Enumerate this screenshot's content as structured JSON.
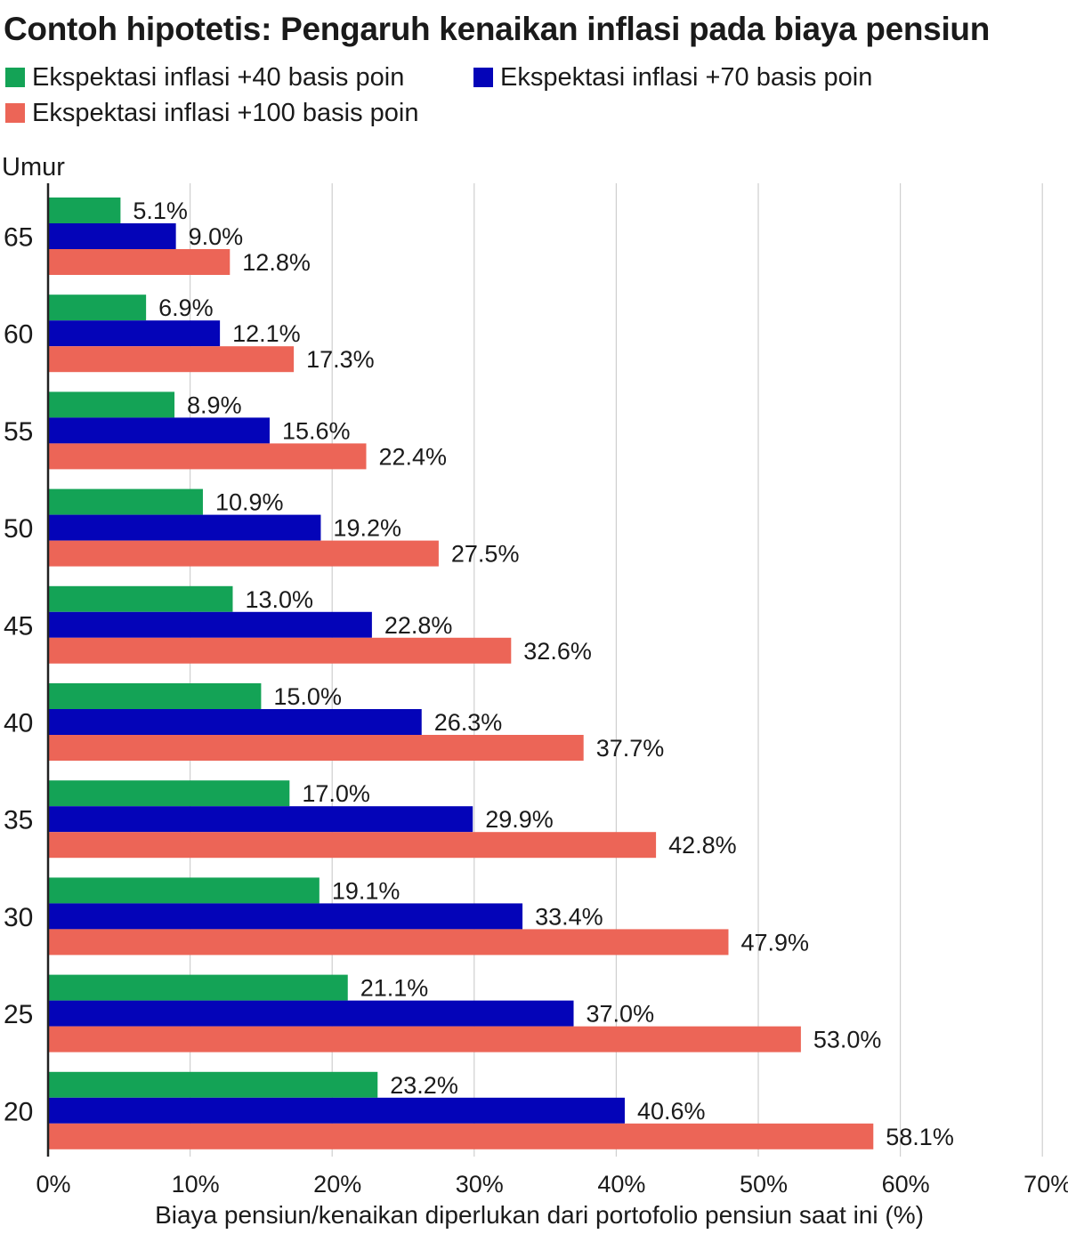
{
  "chart_data": {
    "type": "bar",
    "orientation": "horizontal",
    "title": "Contoh hipotetis: Pengaruh kenaikan inflasi pada biaya pensiun",
    "xlabel": "Biaya pensiun/kenaikan diperlukan dari portofolio pensiun saat ini (%)",
    "ylabel": "Umur",
    "categories": [
      "65",
      "60",
      "55",
      "50",
      "45",
      "40",
      "35",
      "30",
      "25",
      "20"
    ],
    "series": [
      {
        "name": "Ekspektasi inflasi +40 basis poin",
        "color": "#14a356",
        "values": [
          5.1,
          6.9,
          8.9,
          10.9,
          13.0,
          15.0,
          17.0,
          19.1,
          21.1,
          23.2
        ],
        "labels": [
          "5.1%",
          "6.9%",
          "8.9%",
          "10.9%",
          "13.0%",
          "15.0%",
          "17.0%",
          "19.1%",
          "21.1%",
          "23.2%"
        ]
      },
      {
        "name": "Ekspektasi inflasi +70 basis poin",
        "color": "#0404b8",
        "values": [
          9.0,
          12.1,
          15.6,
          19.2,
          22.8,
          26.3,
          29.9,
          33.4,
          37.0,
          40.6
        ],
        "labels": [
          "9.0%",
          "12.1%",
          "15.6%",
          "19.2%",
          "22.8%",
          "26.3%",
          "29.9%",
          "33.4%",
          "37.0%",
          "40.6%"
        ]
      },
      {
        "name": "Ekspektasi inflasi +100 basis poin",
        "color": "#ec6557",
        "values": [
          12.8,
          17.3,
          22.4,
          27.5,
          32.6,
          37.7,
          42.8,
          47.9,
          53.0,
          58.1
        ],
        "labels": [
          "12.8%",
          "17.3%",
          "22.4%",
          "27.5%",
          "32.6%",
          "37.7%",
          "42.8%",
          "47.9%",
          "53.0%",
          "58.1%"
        ]
      }
    ],
    "xlim": [
      0,
      70
    ],
    "xticks": [
      0,
      10,
      20,
      30,
      40,
      50,
      60,
      70
    ],
    "xtick_labels": [
      "0%",
      "10%",
      "20%",
      "30%",
      "40%",
      "50%",
      "60%",
      "70%"
    ],
    "grid": true,
    "legend_position": "top-left"
  }
}
